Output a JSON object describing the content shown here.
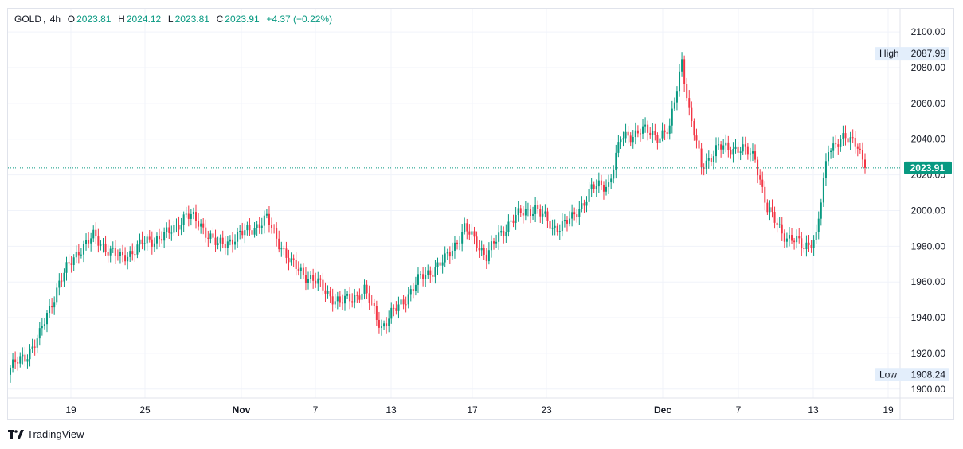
{
  "header": {
    "symbol": "GOLD",
    "interval": "4h",
    "open_label": "O",
    "open": "2023.81",
    "high_label": "H",
    "high": "2024.12",
    "low_label": "L",
    "low": "2023.81",
    "close_label": "C",
    "close": "2023.91",
    "change": "+4.37 (+0.22%)"
  },
  "brand": {
    "name": "TradingView",
    "logo_icon": "tradingview-logo-icon"
  },
  "colors": {
    "up": "#089981",
    "down": "#f23645",
    "grid": "#f0f3fa",
    "axis_text": "#131722"
  },
  "chart_data": {
    "type": "candlestick",
    "title": "GOLD, 4h",
    "x_tick_labels": [
      "19",
      "25",
      "Nov",
      "7",
      "13",
      "17",
      "23",
      "Dec",
      "7",
      "13",
      "19"
    ],
    "y_ticks": [
      1900,
      1920,
      1940,
      1960,
      1980,
      2000,
      2020,
      2040,
      2060,
      2080,
      2100
    ],
    "y_tick_labels": [
      "1900.00",
      "1920.00",
      "1940.00",
      "1960.00",
      "1980.00",
      "2000.00",
      "2020.00",
      "2040.00",
      "2060.00",
      "2080.00",
      "2100.00"
    ],
    "ylim": [
      1895,
      2113
    ],
    "grid": true,
    "last_price": 2023.91,
    "last_price_label": "2023.91",
    "high_marker": {
      "label": "High",
      "value": 2087.98,
      "value_label": "2087.98"
    },
    "low_marker": {
      "label": "Low",
      "value": 1908.24,
      "value_label": "1908.24"
    },
    "series": [
      {
        "name": "GOLD",
        "anchors": [
          [
            0,
            1912
          ],
          [
            6,
            1918
          ],
          [
            12,
            1930
          ],
          [
            20,
            1960
          ],
          [
            28,
            1978
          ],
          [
            34,
            1985
          ],
          [
            45,
            1973
          ],
          [
            55,
            1982
          ],
          [
            65,
            1987
          ],
          [
            72,
            1998
          ],
          [
            78,
            1992
          ],
          [
            85,
            1980
          ],
          [
            95,
            1987
          ],
          [
            105,
            1995
          ],
          [
            115,
            1970
          ],
          [
            125,
            1960
          ],
          [
            135,
            1948
          ],
          [
            145,
            1955
          ],
          [
            152,
            1935
          ],
          [
            160,
            1948
          ],
          [
            168,
            1962
          ],
          [
            178,
            1972
          ],
          [
            186,
            1990
          ],
          [
            195,
            1975
          ],
          [
            205,
            1995
          ],
          [
            215,
            2002
          ],
          [
            222,
            1990
          ],
          [
            230,
            1995
          ],
          [
            238,
            2012
          ],
          [
            245,
            2015
          ],
          [
            250,
            2040
          ],
          [
            258,
            2045
          ],
          [
            265,
            2042
          ],
          [
            270,
            2045
          ],
          [
            275,
            2085
          ],
          [
            278,
            2055
          ],
          [
            283,
            2025
          ],
          [
            290,
            2035
          ],
          [
            298,
            2035
          ],
          [
            305,
            2030
          ],
          [
            310,
            2000
          ],
          [
            318,
            1985
          ],
          [
            325,
            1980
          ],
          [
            330,
            1985
          ],
          [
            335,
            2035
          ],
          [
            340,
            2040
          ],
          [
            347,
            2038
          ],
          [
            350,
            2023.91
          ]
        ]
      }
    ]
  }
}
